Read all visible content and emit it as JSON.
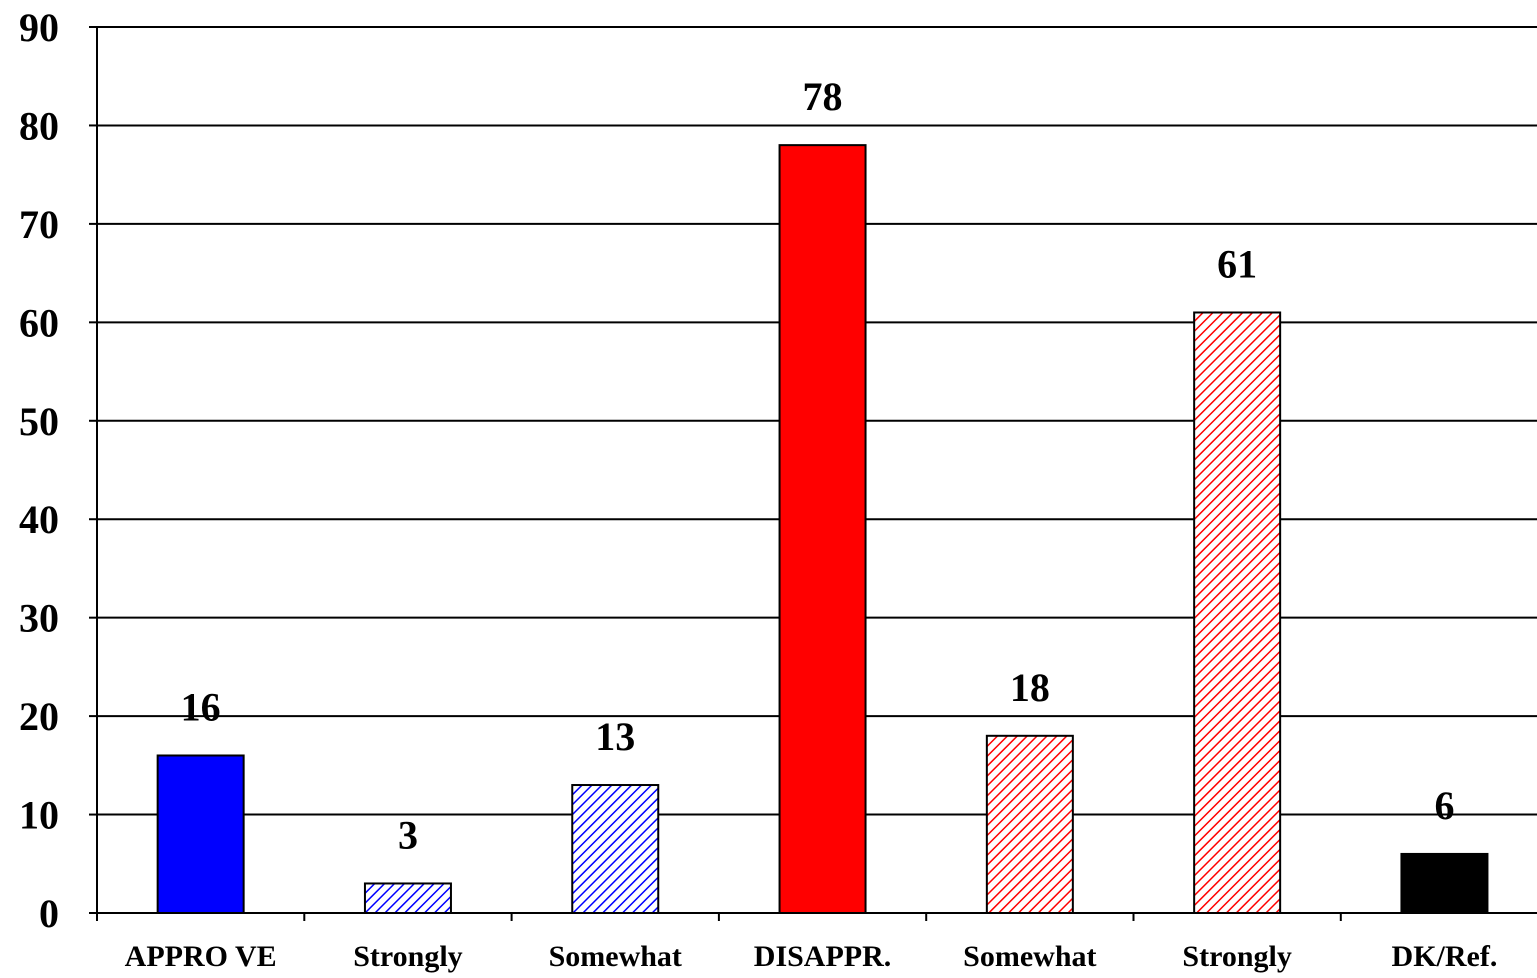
{
  "chart_data": {
    "type": "bar",
    "title": "",
    "xlabel": "",
    "ylabel": "",
    "categories": [
      "APPRO VE",
      "Strongly",
      "Somewhat",
      "DISAPPR.",
      "Somewhat",
      "Strongly",
      "DK/Ref."
    ],
    "values": [
      16,
      3,
      13,
      78,
      18,
      61,
      6
    ],
    "value_labels": [
      "16",
      "3",
      "13",
      "78",
      "18",
      "61",
      "6"
    ],
    "ylim": [
      0,
      90
    ],
    "yticks": [
      0,
      10,
      20,
      30,
      40,
      50,
      60,
      70,
      80,
      90
    ],
    "ytick_labels": [
      "0",
      "10",
      "20",
      "30",
      "40",
      "50",
      "60",
      "70",
      "80",
      "90"
    ],
    "grid": true,
    "legend": "none",
    "bar_styles": [
      {
        "fill": "#0000ff",
        "pattern": "solid"
      },
      {
        "fill": "#0000ff",
        "pattern": "diagonal-hatch"
      },
      {
        "fill": "#0000ff",
        "pattern": "diagonal-hatch"
      },
      {
        "fill": "#ff0000",
        "pattern": "solid"
      },
      {
        "fill": "#ff0000",
        "pattern": "diagonal-hatch"
      },
      {
        "fill": "#ff0000",
        "pattern": "diagonal-hatch"
      },
      {
        "fill": "#000000",
        "pattern": "solid"
      }
    ],
    "colors": {
      "axis": "#000000",
      "grid": "#000000",
      "background": "#ffffff"
    }
  }
}
